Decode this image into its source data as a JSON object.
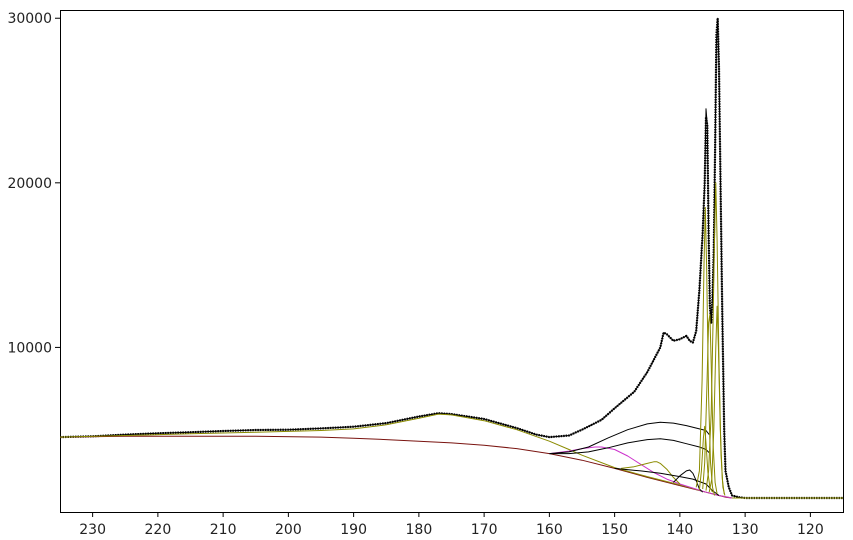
{
  "chart_data": {
    "type": "line",
    "title": "",
    "xlabel": "",
    "ylabel": "",
    "x_reversed": true,
    "xlim": [
      235,
      115
    ],
    "ylim": [
      0,
      30500
    ],
    "grid": false,
    "x_ticks": [
      230,
      220,
      210,
      200,
      190,
      180,
      170,
      160,
      150,
      140,
      130,
      120
    ],
    "y_ticks": [
      10000,
      20000,
      30000
    ],
    "x_tick_labels": [
      "230",
      "220",
      "210",
      "200",
      "190",
      "180",
      "170",
      "160",
      "150",
      "140",
      "130",
      "120"
    ],
    "y_tick_labels": [
      "10000",
      "20000",
      "30000"
    ],
    "series": [
      {
        "color": "#000000",
        "style": "dotted-line",
        "points": [
          [
            235,
            4550
          ],
          [
            230,
            4600
          ],
          [
            225,
            4700
          ],
          [
            220,
            4780
          ],
          [
            215,
            4850
          ],
          [
            210,
            4920
          ],
          [
            205,
            4980
          ],
          [
            200,
            5000
          ],
          [
            195,
            5080
          ],
          [
            190,
            5180
          ],
          [
            185,
            5400
          ],
          [
            180,
            5800
          ],
          [
            177,
            6000
          ],
          [
            175,
            5950
          ],
          [
            170,
            5650
          ],
          [
            165,
            5100
          ],
          [
            162,
            4700
          ],
          [
            160,
            4550
          ],
          [
            157,
            4650
          ],
          [
            155,
            5000
          ],
          [
            152,
            5600
          ],
          [
            150,
            6300
          ],
          [
            147,
            7300
          ],
          [
            145,
            8500
          ],
          [
            143,
            10000
          ],
          [
            142.5,
            10900
          ],
          [
            142,
            10800
          ],
          [
            141,
            10400
          ],
          [
            140,
            10500
          ],
          [
            139,
            10700
          ],
          [
            138.5,
            10400
          ],
          [
            138,
            10300
          ],
          [
            137.5,
            11000
          ],
          [
            137,
            13500
          ],
          [
            136.5,
            17000
          ],
          [
            136.2,
            20000
          ],
          [
            136,
            24000
          ],
          [
            135.8,
            23500
          ],
          [
            135.6,
            17000
          ],
          [
            135.4,
            12500
          ],
          [
            135.2,
            11500
          ],
          [
            135,
            13000
          ],
          [
            134.8,
            16000
          ],
          [
            134.6,
            22000
          ],
          [
            134.4,
            29000
          ],
          [
            134.2,
            30000
          ],
          [
            134,
            27000
          ],
          [
            133.8,
            21000
          ],
          [
            133.5,
            12000
          ],
          [
            133.2,
            5000
          ],
          [
            133,
            2500
          ],
          [
            132.5,
            1500
          ],
          [
            132,
            1000
          ],
          [
            131,
            900
          ],
          [
            130,
            850
          ],
          [
            125,
            850
          ],
          [
            120,
            850
          ],
          [
            115,
            850
          ]
        ]
      },
      {
        "color": "#000000",
        "style": "line",
        "points": [
          [
            235,
            4550
          ],
          [
            230,
            4600
          ],
          [
            225,
            4700
          ],
          [
            220,
            4780
          ],
          [
            215,
            4850
          ],
          [
            210,
            4920
          ],
          [
            205,
            4980
          ],
          [
            200,
            5000
          ],
          [
            195,
            5080
          ],
          [
            190,
            5180
          ],
          [
            185,
            5400
          ],
          [
            180,
            5800
          ],
          [
            177,
            6000
          ],
          [
            175,
            5950
          ],
          [
            170,
            5650
          ],
          [
            165,
            5100
          ],
          [
            162,
            4700
          ],
          [
            160,
            4550
          ],
          [
            157,
            4650
          ],
          [
            155,
            5000
          ],
          [
            152,
            5600
          ],
          [
            150,
            6300
          ],
          [
            147,
            7300
          ],
          [
            145,
            8500
          ],
          [
            143,
            10000
          ],
          [
            142.5,
            10900
          ],
          [
            142,
            10800
          ],
          [
            141,
            10400
          ],
          [
            140,
            10500
          ],
          [
            139,
            10700
          ],
          [
            138.5,
            10400
          ],
          [
            138,
            10300
          ],
          [
            137.5,
            11000
          ],
          [
            137,
            13500
          ],
          [
            136.5,
            17000
          ],
          [
            136.2,
            20000
          ],
          [
            136,
            24500
          ],
          [
            135.8,
            23500
          ],
          [
            135.6,
            17000
          ],
          [
            135.4,
            12500
          ],
          [
            135.2,
            11500
          ],
          [
            135,
            13000
          ],
          [
            134.8,
            16000
          ],
          [
            134.6,
            22000
          ],
          [
            134.4,
            28500
          ],
          [
            134.2,
            30000
          ],
          [
            134,
            27000
          ],
          [
            133.8,
            21000
          ],
          [
            133.5,
            12000
          ],
          [
            133.2,
            5000
          ],
          [
            133,
            2500
          ],
          [
            132.5,
            1500
          ],
          [
            132,
            1000
          ],
          [
            131,
            900
          ],
          [
            130,
            850
          ],
          [
            125,
            850
          ],
          [
            120,
            850
          ],
          [
            115,
            850
          ]
        ]
      },
      {
        "color": "#7a1410",
        "style": "line",
        "points": [
          [
            235,
            4550
          ],
          [
            225,
            4600
          ],
          [
            215,
            4600
          ],
          [
            205,
            4600
          ],
          [
            195,
            4550
          ],
          [
            190,
            4480
          ],
          [
            185,
            4400
          ],
          [
            180,
            4300
          ],
          [
            175,
            4200
          ],
          [
            170,
            4050
          ],
          [
            165,
            3850
          ],
          [
            160,
            3550
          ],
          [
            155,
            3150
          ],
          [
            150,
            2650
          ],
          [
            145,
            2100
          ],
          [
            140,
            1600
          ],
          [
            136,
            1200
          ],
          [
            134,
            1000
          ],
          [
            133,
            900
          ],
          [
            132,
            850
          ],
          [
            125,
            850
          ],
          [
            115,
            850
          ]
        ]
      },
      {
        "color": "#8b8b00",
        "style": "line",
        "points": [
          [
            235,
            4550
          ],
          [
            225,
            4650
          ],
          [
            215,
            4750
          ],
          [
            205,
            4850
          ],
          [
            200,
            4900
          ],
          [
            195,
            4950
          ],
          [
            190,
            5050
          ],
          [
            185,
            5300
          ],
          [
            180,
            5700
          ],
          [
            177,
            5950
          ],
          [
            175,
            5900
          ],
          [
            170,
            5550
          ],
          [
            165,
            5000
          ],
          [
            160,
            4300
          ],
          [
            157,
            3800
          ],
          [
            155,
            3450
          ],
          [
            150,
            2700
          ],
          [
            145,
            2150
          ],
          [
            140,
            1650
          ],
          [
            136,
            1200
          ],
          [
            134,
            1000
          ],
          [
            132,
            850
          ],
          [
            125,
            850
          ],
          [
            115,
            850
          ]
        ]
      },
      {
        "color": "#cc33cc",
        "style": "line",
        "points": [
          [
            160,
            3550
          ],
          [
            157,
            3700
          ],
          [
            155,
            3850
          ],
          [
            153,
            3950
          ],
          [
            152,
            3950
          ],
          [
            150,
            3800
          ],
          [
            148,
            3400
          ],
          [
            146,
            2900
          ],
          [
            144,
            2400
          ],
          [
            142,
            2000
          ],
          [
            140,
            1700
          ],
          [
            136,
            1200
          ],
          [
            134,
            1000
          ],
          [
            132,
            850
          ]
        ]
      },
      {
        "color": "#000000",
        "style": "line",
        "points": [
          [
            160,
            3550
          ],
          [
            157,
            3650
          ],
          [
            154,
            3950
          ],
          [
            151,
            4500
          ],
          [
            148,
            5000
          ],
          [
            145,
            5350
          ],
          [
            143,
            5450
          ],
          [
            141,
            5400
          ],
          [
            139,
            5250
          ],
          [
            137,
            5050
          ],
          [
            136,
            4950
          ],
          [
            135.5,
            4700
          ]
        ]
      },
      {
        "color": "#000000",
        "style": "line",
        "points": [
          [
            160,
            3550
          ],
          [
            157,
            3550
          ],
          [
            154,
            3650
          ],
          [
            151,
            3900
          ],
          [
            148,
            4200
          ],
          [
            145,
            4400
          ],
          [
            143,
            4450
          ],
          [
            141,
            4350
          ],
          [
            139,
            4150
          ],
          [
            137,
            3950
          ],
          [
            136,
            3800
          ],
          [
            135.5,
            3600
          ]
        ]
      },
      {
        "color": "#8b8b00",
        "style": "line",
        "points": [
          [
            149,
            2650
          ],
          [
            147,
            2750
          ],
          [
            145,
            2950
          ],
          [
            144,
            3050
          ],
          [
            143.5,
            3050
          ],
          [
            143,
            2950
          ],
          [
            142,
            2600
          ],
          [
            141,
            2100
          ],
          [
            140,
            1700
          ]
        ]
      },
      {
        "color": "#000000",
        "style": "line",
        "points": [
          [
            141,
            1800
          ],
          [
            140,
            2200
          ],
          [
            139,
            2500
          ],
          [
            138.5,
            2550
          ],
          [
            138,
            2350
          ],
          [
            137.5,
            1900
          ],
          [
            137,
            1400
          ],
          [
            136.5,
            1200
          ]
        ]
      },
      {
        "color": "#000000",
        "style": "line",
        "points": [
          [
            150,
            2650
          ],
          [
            146,
            2500
          ],
          [
            143,
            2350
          ],
          [
            140,
            2150
          ],
          [
            138,
            2000
          ],
          [
            136,
            1700
          ],
          [
            135,
            1300
          ],
          [
            134,
            1000
          ]
        ]
      },
      {
        "color": "#8b8b00",
        "style": "line",
        "points": [
          [
            137.5,
            1500
          ],
          [
            137,
            2500
          ],
          [
            136.6,
            8000
          ],
          [
            136.3,
            15000
          ],
          [
            136.1,
            18500
          ],
          [
            135.9,
            15000
          ],
          [
            135.6,
            7000
          ],
          [
            135.3,
            3000
          ],
          [
            135,
            1500
          ],
          [
            134.7,
            1000
          ]
        ]
      },
      {
        "color": "#8b8b00",
        "style": "line",
        "points": [
          [
            136.5,
            1400
          ],
          [
            136.2,
            3000
          ],
          [
            135.9,
            7000
          ],
          [
            135.6,
            11500
          ],
          [
            135.4,
            12000
          ],
          [
            135.2,
            9000
          ],
          [
            134.9,
            4000
          ],
          [
            134.6,
            1800
          ],
          [
            134.3,
            1100
          ]
        ]
      },
      {
        "color": "#8b8b00",
        "style": "line",
        "points": [
          [
            136,
            1300
          ],
          [
            135.6,
            2500
          ],
          [
            135.2,
            6000
          ],
          [
            134.9,
            12000
          ],
          [
            134.7,
            16500
          ],
          [
            134.5,
            20000
          ],
          [
            134.3,
            16500
          ],
          [
            134,
            9000
          ],
          [
            133.7,
            3500
          ],
          [
            133.4,
            1500
          ],
          [
            133.1,
            1000
          ]
        ]
      },
      {
        "color": "#8b8b00",
        "style": "line",
        "points": [
          [
            135.5,
            1200
          ],
          [
            135.1,
            2000
          ],
          [
            134.8,
            5000
          ],
          [
            134.5,
            10000
          ],
          [
            134.3,
            12500
          ],
          [
            134.1,
            10000
          ],
          [
            133.8,
            5000
          ],
          [
            133.5,
            2000
          ],
          [
            133.2,
            1100
          ]
        ]
      },
      {
        "color": "#8b8b00",
        "style": "line",
        "points": [
          [
            137,
            1350
          ],
          [
            136.7,
            2500
          ],
          [
            136.4,
            4500
          ],
          [
            136.2,
            5200
          ],
          [
            136,
            4200
          ],
          [
            135.7,
            2400
          ],
          [
            135.4,
            1500
          ],
          [
            135,
            1200
          ]
        ]
      }
    ]
  }
}
